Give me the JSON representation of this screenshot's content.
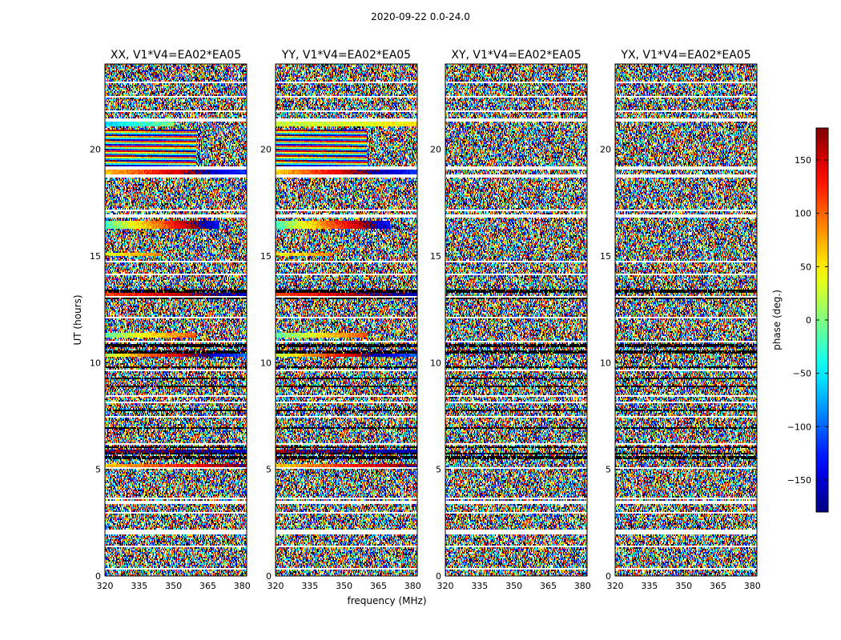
{
  "chart_data": {
    "type": "heatmap",
    "suptitle": "2020-09-22 0.0-24.0",
    "xlabel": "frequency (MHz)",
    "ylabel": "UT (hours)",
    "xlim": [
      320,
      382
    ],
    "ylim": [
      0,
      24
    ],
    "xticks": [
      320,
      335,
      350,
      365,
      380
    ],
    "yticks": [
      0,
      5,
      10,
      15,
      20
    ],
    "colormap": "jet",
    "colorbar": {
      "label": "phase (deg.)",
      "range": [
        -180,
        180
      ],
      "ticks": [
        -150,
        -100,
        -50,
        0,
        50,
        100,
        150
      ],
      "tick_labels": [
        "−150",
        "−100",
        "−50",
        "0",
        "50",
        "100",
        "150"
      ]
    },
    "panels": [
      {
        "title": "XX, V1*V4=EA02*EA05",
        "polarization": "XX",
        "coherent": true
      },
      {
        "title": "YY, V1*V4=EA02*EA05",
        "polarization": "YY",
        "coherent": true
      },
      {
        "title": "XY, V1*V4=EA02*EA05",
        "polarization": "XY",
        "coherent": false
      },
      {
        "title": "YX, V1*V4=EA02*EA05",
        "polarization": "YX",
        "coherent": false
      }
    ],
    "flagged_white_bands_ut": [
      [
        0.28,
        0.36
      ],
      [
        1.35,
        1.45
      ],
      [
        1.98,
        2.18
      ],
      [
        2.9,
        2.98
      ],
      [
        3.4,
        3.5
      ],
      [
        3.62,
        3.7
      ],
      [
        5.05,
        5.12
      ],
      [
        6.12,
        6.2
      ],
      [
        7.4,
        7.5
      ],
      [
        8.1,
        8.2
      ],
      [
        8.4,
        8.5
      ],
      [
        9.6,
        9.7
      ],
      [
        10.95,
        11.05
      ],
      [
        12.08,
        12.18
      ],
      [
        13.05,
        13.15
      ],
      [
        14.08,
        14.18
      ],
      [
        14.7,
        14.8
      ],
      [
        16.8,
        16.92
      ],
      [
        17.08,
        17.18
      ],
      [
        18.68,
        18.8
      ],
      [
        19.08,
        19.18
      ],
      [
        21.3,
        21.42
      ],
      [
        21.72,
        21.82
      ],
      [
        22.42,
        22.52
      ],
      [
        23.1,
        23.2
      ]
    ],
    "dark_bands_ut": [
      [
        5.0,
        5.05
      ],
      [
        5.45,
        5.6
      ],
      [
        5.7,
        5.8
      ],
      [
        6.0,
        6.08
      ],
      [
        6.88,
        6.98
      ],
      [
        7.7,
        7.8
      ],
      [
        8.85,
        8.92
      ],
      [
        9.2,
        9.28
      ],
      [
        9.78,
        9.86
      ],
      [
        10.45,
        10.55
      ],
      [
        10.7,
        10.9
      ],
      [
        12.95,
        13.02
      ],
      [
        13.3,
        13.4
      ]
    ],
    "coherent_segments": [
      {
        "ut": [
          21.05,
          21.3
        ],
        "phase_start": -60,
        "slope": 2.0,
        "fringe": 0,
        "end_mhz": 350,
        "applies": "XX"
      },
      {
        "ut": [
          21.05,
          21.3
        ],
        "phase_start": 20,
        "slope": 0.5,
        "fringe": 0,
        "end_mhz": 382,
        "applies": "YY"
      },
      {
        "ut": [
          19.05,
          20.95
        ],
        "phase_start": -90,
        "slope": 2.0,
        "fringe": 1500,
        "end_mhz": 360,
        "applies": "both"
      },
      {
        "ut": [
          18.82,
          19.05
        ],
        "phase_start": 60,
        "slope": 3.0,
        "fringe": 0,
        "end_mhz": 382,
        "applies": "both"
      },
      {
        "ut": [
          16.25,
          16.65
        ],
        "phase_start": -30,
        "slope": 5.0,
        "fringe": 40,
        "end_mhz": 370,
        "applies": "both"
      },
      {
        "ut": [
          15.0,
          15.15
        ],
        "phase_start": 40,
        "slope": 2.0,
        "fringe": 0,
        "end_mhz": 345,
        "applies": "both"
      },
      {
        "ut": [
          13.15,
          13.3
        ],
        "phase_start": 110,
        "slope": 1.5,
        "fringe": 0,
        "end_mhz": 382,
        "applies": "both"
      },
      {
        "ut": [
          11.15,
          11.4
        ],
        "phase_start": -10,
        "slope": 3.0,
        "fringe": 0,
        "end_mhz": 360,
        "applies": "both"
      },
      {
        "ut": [
          10.25,
          10.4
        ],
        "phase_start": 20,
        "slope": 4.0,
        "fringe": 0,
        "end_mhz": 382,
        "applies": "both"
      },
      {
        "ut": [
          5.8,
          5.95
        ],
        "phase_start": 170,
        "slope": 0.5,
        "fringe": 0,
        "end_mhz": 382,
        "applies": "both"
      },
      {
        "ut": [
          5.1,
          5.25
        ],
        "phase_start": 60,
        "slope": 2.0,
        "fringe": 0,
        "end_mhz": 382,
        "applies": "both"
      }
    ]
  }
}
